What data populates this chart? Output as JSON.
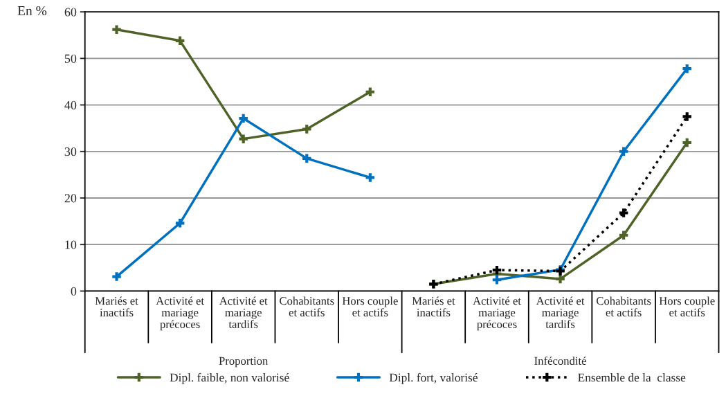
{
  "chart_data": {
    "type": "line",
    "ylabel": "En %",
    "categories": [
      "Mariés et\ninactifs",
      "Activité et\nmariage\nprécoces",
      "Activité et\nmariage\ntardifs",
      "Cohabitants\net actifs",
      "Hors couple\net actifs",
      "Mariés et\ninactifs",
      "Activité et\nmariage\nprécoces",
      "Activité et\nmariage\ntardifs",
      "Cohabitants\net actifs",
      "Hors couple\net actifs"
    ],
    "series": [
      {
        "name": "Dipl. faible, non valorisé",
        "color": "#4f6228",
        "line_style": "solid",
        "values": [
          56.2,
          53.8,
          32.7,
          34.8,
          42.8,
          null,
          null,
          null,
          null,
          null
        ]
      },
      {
        "color": "#4f6228",
        "line_style": "solid",
        "values": [
          null,
          null,
          null,
          null,
          null,
          1.5,
          3.7,
          2.6,
          12.0,
          31.9
        ]
      },
      {
        "name": "Dipl. fort, valorisé",
        "color": "#0070c0",
        "line_style": "solid",
        "values": [
          3.1,
          14.6,
          37.1,
          28.5,
          24.4,
          null,
          null,
          null,
          null,
          null
        ]
      },
      {
        "color": "#0070c0",
        "line_style": "solid",
        "values": [
          null,
          null,
          null,
          null,
          null,
          null,
          2.4,
          4.6,
          30.0,
          47.8
        ]
      },
      {
        "name": "Ensemble de la  classe",
        "color": "#000000",
        "line_style": "dotted",
        "values": [
          null,
          null,
          null,
          null,
          null,
          1.5,
          4.5,
          4.3,
          16.8,
          37.5
        ]
      }
    ],
    "annotations": [
      "Proportion",
      "Infécondité"
    ],
    "ylim": [
      0,
      60
    ],
    "yticks": [
      0,
      10,
      20,
      30,
      40,
      50,
      60
    ],
    "grid": "y",
    "legend": "bottom",
    "marker": "cross"
  }
}
